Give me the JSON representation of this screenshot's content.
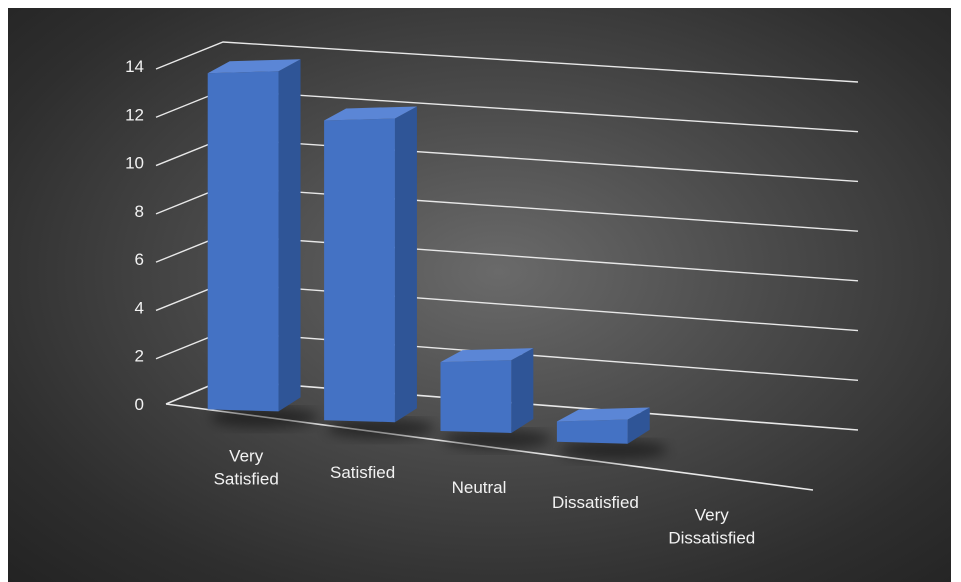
{
  "chart_data": {
    "type": "bar",
    "categories": [
      "Very Satisfied",
      "Satisfied",
      "Neutral",
      "Dissatisfied",
      "Very Dissatisfied"
    ],
    "category_lines": [
      [
        "Very",
        "Satisfied"
      ],
      [
        "Satisfied"
      ],
      [
        "Neutral"
      ],
      [
        "Dissatisfied"
      ],
      [
        "Very",
        "Dissatisfied"
      ]
    ],
    "values": [
      14,
      12.5,
      3,
      1,
      0
    ],
    "title": "",
    "xlabel": "",
    "ylabel": "",
    "ylim": [
      0,
      14
    ],
    "yticks": [
      0,
      2,
      4,
      6,
      8,
      10,
      12,
      14
    ],
    "grid": true,
    "legend": "none",
    "style": "3d-column",
    "colors": {
      "bar_front": "#4472c4",
      "bar_side": "#2f5597",
      "bar_top": "#5b86d6",
      "gridline": "#e8e8e8",
      "text": "#f2f2f2"
    }
  }
}
